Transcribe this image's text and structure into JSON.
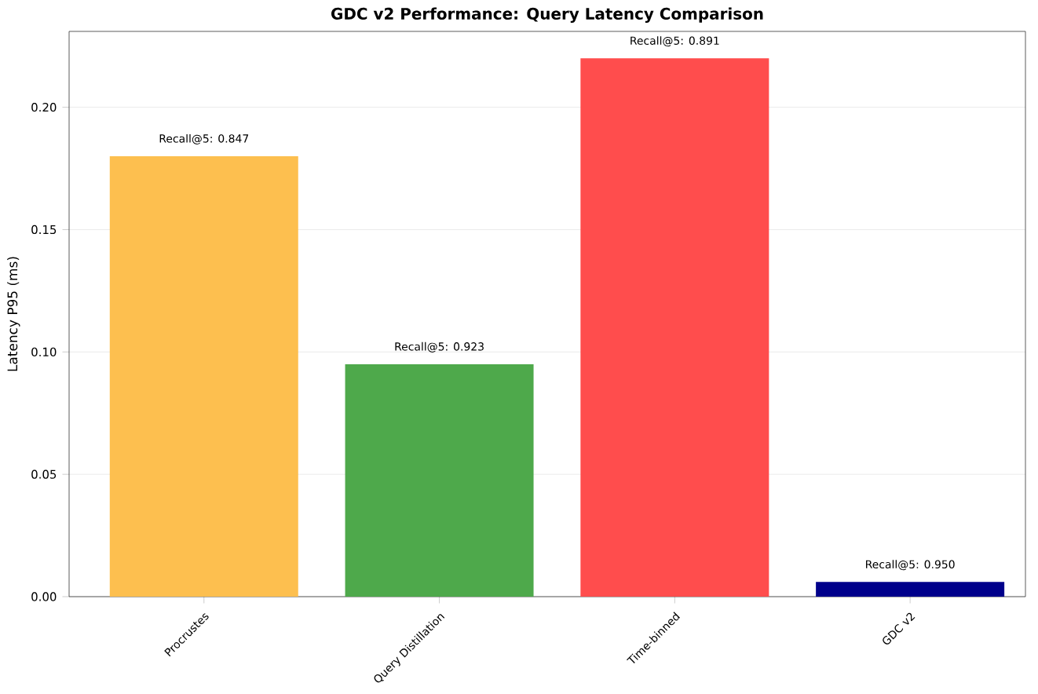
{
  "chart_data": {
    "type": "bar",
    "title": "GDC v2 Performance: Query Latency Comparison",
    "ylabel": "Latency P95 (ms)",
    "categories": [
      "Procrustes",
      "Query Distillation",
      "Time-binned",
      "GDC v2"
    ],
    "values": [
      0.18,
      0.095,
      0.22,
      0.006
    ],
    "colors": [
      "#fdbf4f",
      "#4ea94b",
      "#ff4d4d",
      "#00008b"
    ],
    "value_labels": [
      "Recall@5: 0.847",
      "Recall@5: 0.923",
      "Recall@5: 0.891",
      "Recall@5: 0.950"
    ],
    "ylim": [
      0,
      0.231
    ],
    "yticks": [
      {
        "value": 0,
        "label": "0.00"
      },
      {
        "value": 0.05,
        "label": "0.05"
      },
      {
        "value": 0.1,
        "label": "0.10"
      },
      {
        "value": 0.15,
        "label": "0.15"
      },
      {
        "value": 0.2,
        "label": "0.20"
      }
    ],
    "grid": "y"
  }
}
